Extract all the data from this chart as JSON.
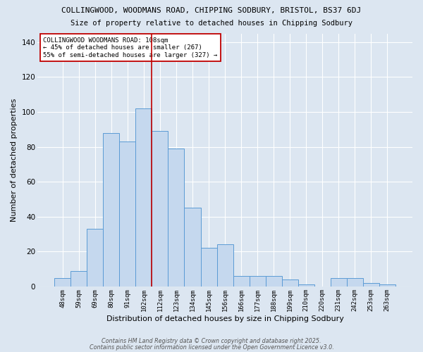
{
  "title1": "COLLINGWOOD, WOODMANS ROAD, CHIPPING SODBURY, BRISTOL, BS37 6DJ",
  "title2": "Size of property relative to detached houses in Chipping Sodbury",
  "xlabel": "Distribution of detached houses by size in Chipping Sodbury",
  "ylabel": "Number of detached properties",
  "footer1": "Contains HM Land Registry data © Crown copyright and database right 2025.",
  "footer2": "Contains public sector information licensed under the Open Government Licence v3.0.",
  "bar_labels": [
    "48sqm",
    "59sqm",
    "69sqm",
    "80sqm",
    "91sqm",
    "102sqm",
    "112sqm",
    "123sqm",
    "134sqm",
    "145sqm",
    "156sqm",
    "166sqm",
    "177sqm",
    "188sqm",
    "199sqm",
    "210sqm",
    "220sqm",
    "231sqm",
    "242sqm",
    "253sqm",
    "263sqm"
  ],
  "bar_values": [
    5,
    9,
    33,
    88,
    83,
    102,
    89,
    79,
    45,
    22,
    24,
    6,
    6,
    6,
    4,
    1,
    0,
    5,
    5,
    2,
    1
  ],
  "bar_color": "#c5d8ee",
  "bar_edgecolor": "#5b9bd5",
  "bg_color": "#dce6f1",
  "grid_color": "#ffffff",
  "ylim": [
    0,
    145
  ],
  "yticks": [
    0,
    20,
    40,
    60,
    80,
    100,
    120,
    140
  ],
  "property_label": "COLLINGWOOD WOODMANS ROAD: 108sqm",
  "annotation_line1": "← 45% of detached houses are smaller (267)",
  "annotation_line2": "55% of semi-detached houses are larger (327) →",
  "vline_x_index": 5.5,
  "vline_color": "#c00000",
  "footer_color": "#555555"
}
